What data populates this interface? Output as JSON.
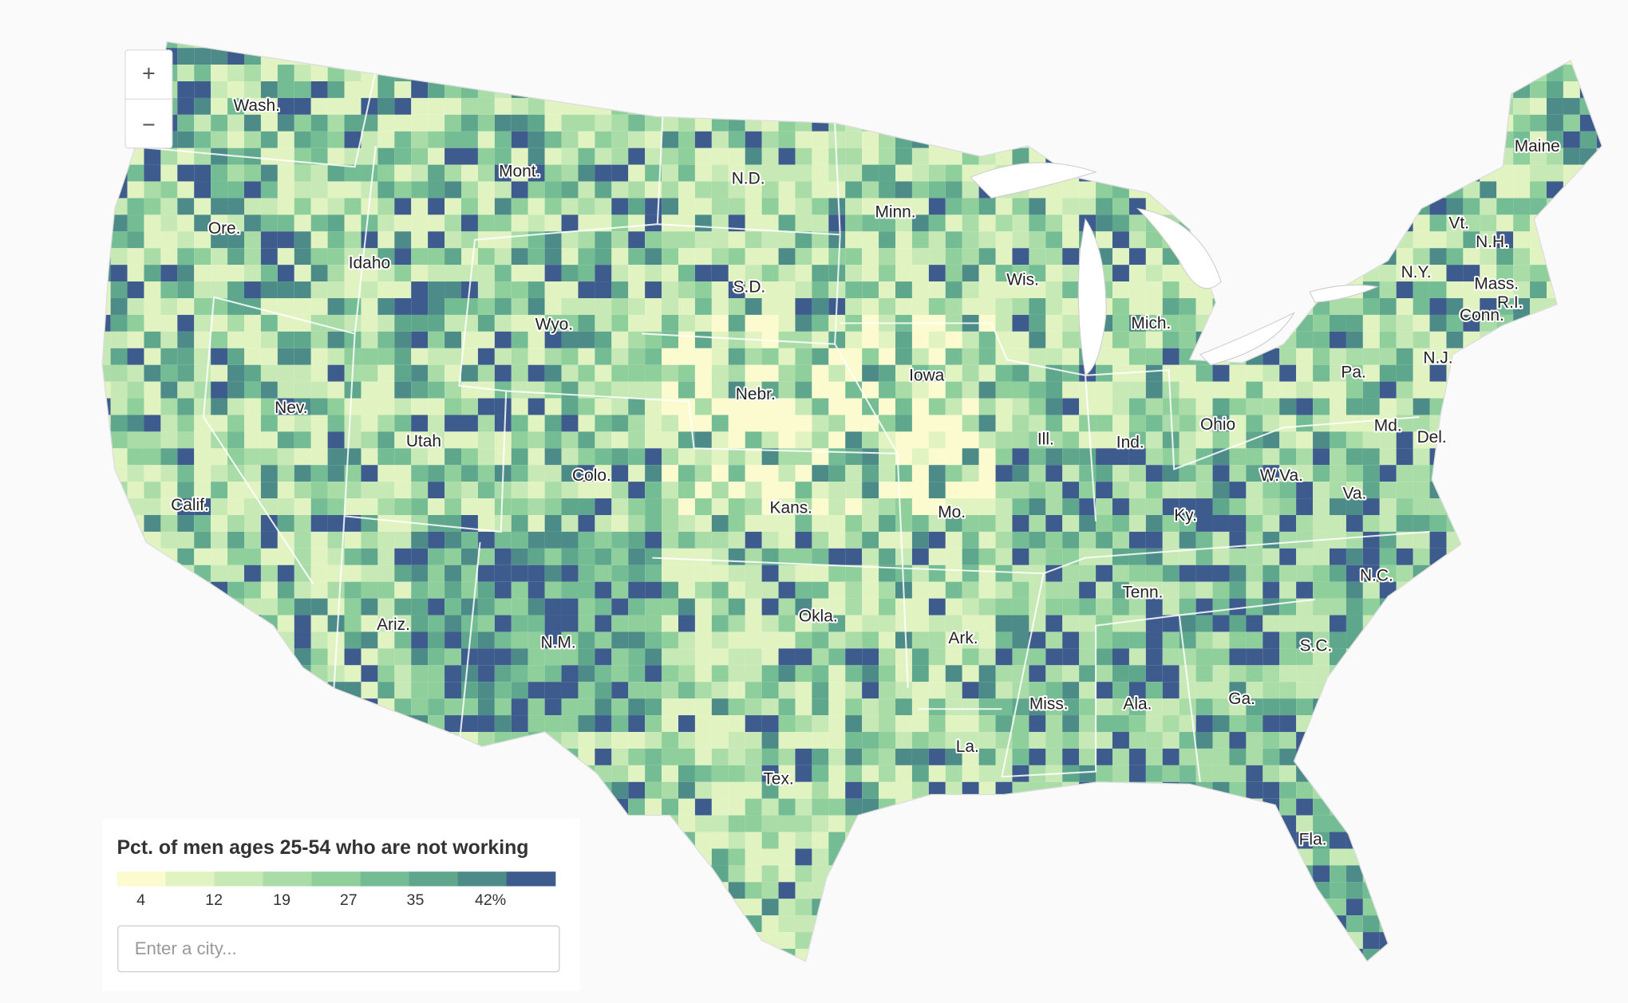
{
  "map": {
    "zoom_in": "+",
    "zoom_out": "−",
    "state_labels": [
      "Wash.",
      "Mont.",
      "N.D.",
      "Minn.",
      "Maine",
      "Ore.",
      "Idaho",
      "Vt.",
      "N.H.",
      "Wis.",
      "S.D.",
      "N.Y.",
      "Mass.",
      "R.I.",
      "Conn.",
      "Wyo.",
      "Mich.",
      "Iowa",
      "N.J.",
      "Pa.",
      "Nebr.",
      "Nev.",
      "Ohio",
      "Md.",
      "Del.",
      "Ill.",
      "Ind.",
      "Utah",
      "W.Va.",
      "Colo.",
      "Va.",
      "Kans.",
      "Calif.",
      "Mo.",
      "Ky.",
      "N.C.",
      "Tenn.",
      "Okla.",
      "Ariz.",
      "Ark.",
      "N.M.",
      "S.C.",
      "Miss.",
      "Ala.",
      "Ga.",
      "La.",
      "Tex.",
      "Fla."
    ],
    "legend": {
      "title": "Pct. of men ages 25-54 who are not working",
      "colors": [
        "#fbfbcf",
        "#e2f3c2",
        "#c7e9b5",
        "#aadca7",
        "#8fcf9c",
        "#74bd94",
        "#5ea68c",
        "#4c8b87",
        "#3d5b8c"
      ],
      "tick_labels": [
        "4",
        "12",
        "19",
        "27",
        "35",
        "42%"
      ]
    },
    "search": {
      "placeholder": "Enter a city..."
    }
  }
}
